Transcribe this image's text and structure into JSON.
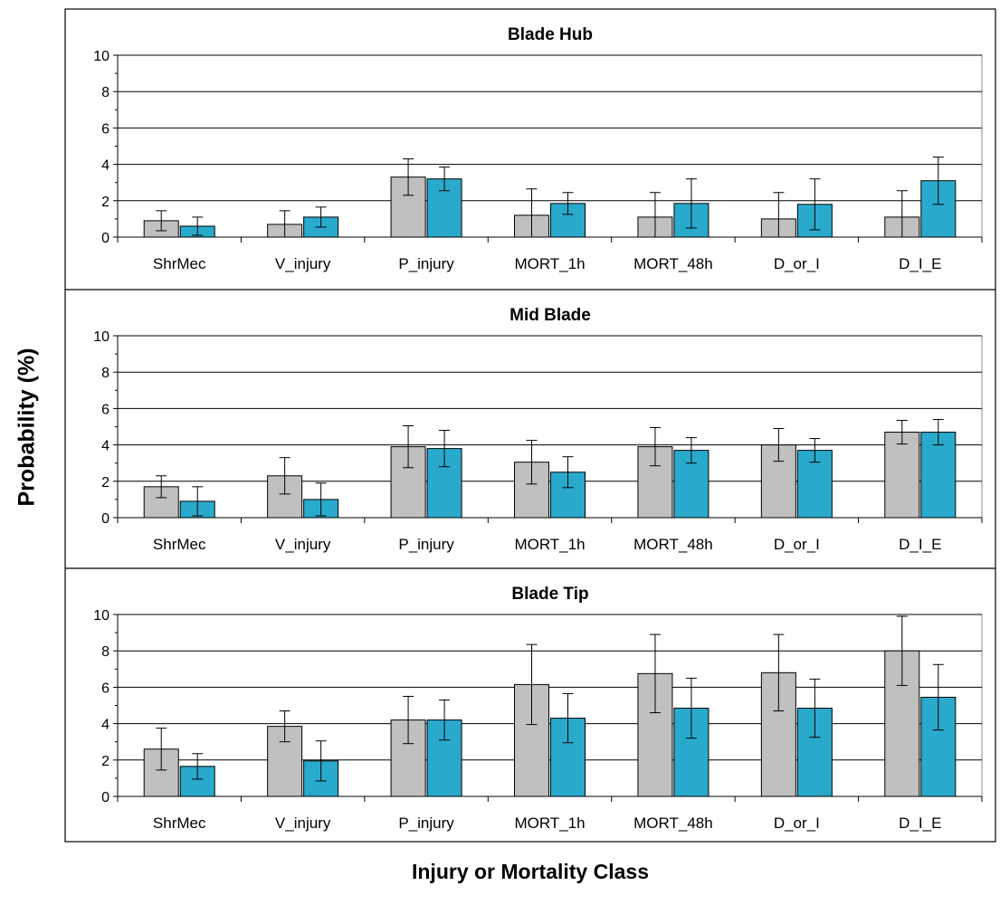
{
  "chart_data": {
    "type": "bar",
    "ylabel": "Probability (%)",
    "xlabel": "Injury or Mortality Class",
    "categories": [
      "ShrMec",
      "V_injury",
      "P_injury",
      "MORT_1h",
      "MORT_48h",
      "D_or_I",
      "D_I_E"
    ],
    "ylim": [
      0,
      10
    ],
    "yticks": [
      "0",
      "2",
      "4",
      "6",
      "8",
      "10"
    ],
    "grid": "horizontal major gridlines",
    "colors": {
      "series_a": "#c0c0c0",
      "series_b": "#29aacc"
    },
    "panels": [
      {
        "title": "Blade Hub",
        "series": [
          {
            "values": [
              0.9,
              0.7,
              3.3,
              1.2,
              1.1,
              1.0,
              1.1
            ],
            "error": [
              0.55,
              0.75,
              1.0,
              1.45,
              1.35,
              1.45,
              1.45
            ]
          },
          {
            "values": [
              0.6,
              1.1,
              3.2,
              1.85,
              1.85,
              1.8,
              3.1
            ],
            "error": [
              0.5,
              0.55,
              0.65,
              0.6,
              1.35,
              1.4,
              1.3
            ]
          }
        ]
      },
      {
        "title": "Mid Blade",
        "series": [
          {
            "values": [
              1.7,
              2.3,
              3.9,
              3.05,
              3.9,
              4.0,
              4.7
            ],
            "error": [
              0.6,
              1.0,
              1.15,
              1.2,
              1.05,
              0.9,
              0.65
            ]
          },
          {
            "values": [
              0.9,
              1.0,
              3.8,
              2.5,
              3.7,
              3.7,
              4.7
            ],
            "error": [
              0.8,
              0.9,
              1.0,
              0.85,
              0.7,
              0.65,
              0.7
            ]
          }
        ]
      },
      {
        "title": "Blade Tip",
        "series": [
          {
            "values": [
              2.6,
              3.85,
              4.2,
              6.15,
              6.75,
              6.8,
              8.0
            ],
            "error": [
              1.15,
              0.85,
              1.3,
              2.2,
              2.15,
              2.1,
              1.9
            ]
          },
          {
            "values": [
              1.65,
              1.95,
              4.2,
              4.3,
              4.85,
              4.85,
              5.45
            ],
            "error": [
              0.7,
              1.1,
              1.1,
              1.35,
              1.65,
              1.6,
              1.8
            ]
          }
        ]
      }
    ]
  }
}
